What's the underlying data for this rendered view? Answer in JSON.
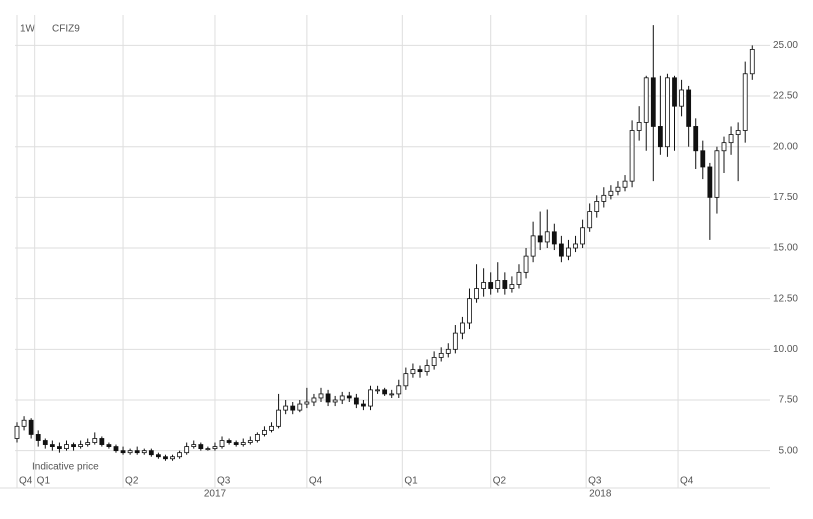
{
  "header": {
    "interval": "1W",
    "symbol": "CFIZ9"
  },
  "chart_data": {
    "type": "candlestick",
    "note": "Indicative price",
    "up_color": "#ffffff",
    "down_color": "#111111",
    "outline_color": "#111111",
    "grid": true,
    "ylim": [
      3.65,
      26.5
    ],
    "yticks": [
      {
        "value": 5,
        "label": "5.00"
      },
      {
        "value": 7.5,
        "label": "7.50"
      },
      {
        "value": 10,
        "label": "10.00"
      },
      {
        "value": 12.5,
        "label": "12.50"
      },
      {
        "value": 15,
        "label": "15.00"
      },
      {
        "value": 17.5,
        "label": "17.50"
      },
      {
        "value": 20,
        "label": "20.00"
      },
      {
        "value": 22.5,
        "label": "22.50"
      },
      {
        "value": 25,
        "label": "25.00"
      }
    ],
    "xticks": [
      {
        "value": 0,
        "label": "Q4"
      },
      {
        "value": 2.5,
        "label": "Q1"
      },
      {
        "value": 15,
        "label": "Q2"
      },
      {
        "value": 28,
        "label": "Q3"
      },
      {
        "value": 41,
        "label": "Q4"
      },
      {
        "value": 54.5,
        "label": "Q1"
      },
      {
        "value": 67,
        "label": "Q2"
      },
      {
        "value": 80.5,
        "label": "Q3"
      },
      {
        "value": 93.5,
        "label": "Q4"
      }
    ],
    "xyears": [
      {
        "value": 28,
        "label": "2017"
      },
      {
        "value": 82.5,
        "label": "2018"
      }
    ],
    "open": [
      5.6,
      6.2,
      6.5,
      5.8,
      5.5,
      5.3,
      5.2,
      5.1,
      5.3,
      5.2,
      5.3,
      5.4,
      5.6,
      5.3,
      5.2,
      5.0,
      4.9,
      5.0,
      4.9,
      5.0,
      4.8,
      4.7,
      4.6,
      4.7,
      4.9,
      5.2,
      5.3,
      5.1,
      5.1,
      5.2,
      5.5,
      5.4,
      5.3,
      5.4,
      5.5,
      5.8,
      6.0,
      6.2,
      7.0,
      7.2,
      7.0,
      7.3,
      7.4,
      7.6,
      7.8,
      7.4,
      7.5,
      7.7,
      7.6,
      7.3,
      7.2,
      8.0,
      8.0,
      7.8,
      7.8,
      8.2,
      8.8,
      9.0,
      8.9,
      9.2,
      9.6,
      9.8,
      10.0,
      10.8,
      11.3,
      12.5,
      13.0,
      13.3,
      13.0,
      13.4,
      13.0,
      13.2,
      13.8,
      14.6,
      15.6,
      15.3,
      15.8,
      15.2,
      14.6,
      15.0,
      15.2,
      16.0,
      16.8,
      17.3,
      17.6,
      17.8,
      18.0,
      18.3,
      20.8,
      21.2,
      23.4,
      21.0,
      20.0,
      23.4,
      22.0,
      22.8,
      21.0,
      19.8,
      19.0,
      17.5,
      19.8,
      20.2,
      20.6,
      20.8,
      23.6
    ],
    "high": [
      6.4,
      6.7,
      6.6,
      6.0,
      5.6,
      5.5,
      5.4,
      5.5,
      5.4,
      5.5,
      5.6,
      5.9,
      5.7,
      5.4,
      5.3,
      5.2,
      5.1,
      5.2,
      5.1,
      5.1,
      4.9,
      4.8,
      4.8,
      5.0,
      5.4,
      5.5,
      5.4,
      5.2,
      5.4,
      5.7,
      5.6,
      5.5,
      5.6,
      5.7,
      5.9,
      6.2,
      6.4,
      7.8,
      7.5,
      7.4,
      7.5,
      8.1,
      7.8,
      8.1,
      8.0,
      7.7,
      7.9,
      7.9,
      7.8,
      7.5,
      8.2,
      8.2,
      8.1,
      8.0,
      8.5,
      9.1,
      9.3,
      9.2,
      9.5,
      9.9,
      10.1,
      10.3,
      11.2,
      11.6,
      13.0,
      14.2,
      14.0,
      13.8,
      14.3,
      13.8,
      13.6,
      14.2,
      15.0,
      16.3,
      16.8,
      16.9,
      16.2,
      15.6,
      15.4,
      15.6,
      16.4,
      17.2,
      17.6,
      18.0,
      18.1,
      18.3,
      18.6,
      21.3,
      22.0,
      23.5,
      26.0,
      23.5,
      23.6,
      23.5,
      23.3,
      23.0,
      21.4,
      20.3,
      19.2,
      20.0,
      20.5,
      21.0,
      21.2,
      24.2,
      25.0
    ],
    "low": [
      5.4,
      6.0,
      5.6,
      5.2,
      5.1,
      5.0,
      4.9,
      5.0,
      5.0,
      5.1,
      5.2,
      5.3,
      5.2,
      5.1,
      4.9,
      4.8,
      4.8,
      4.8,
      4.8,
      4.7,
      4.6,
      4.5,
      4.5,
      4.6,
      4.8,
      5.1,
      5.0,
      5.0,
      5.0,
      5.1,
      5.3,
      5.2,
      5.2,
      5.3,
      5.4,
      5.7,
      5.9,
      6.1,
      6.8,
      6.8,
      6.9,
      7.1,
      7.2,
      7.4,
      7.2,
      7.2,
      7.3,
      7.4,
      7.1,
      7.0,
      7.0,
      7.8,
      7.7,
      7.6,
      7.6,
      8.0,
      8.6,
      8.6,
      8.7,
      9.0,
      9.4,
      9.6,
      9.8,
      10.5,
      11.0,
      12.3,
      12.6,
      12.7,
      12.8,
      12.7,
      12.8,
      13.0,
      13.5,
      14.3,
      14.9,
      15.0,
      14.9,
      14.3,
      14.4,
      14.8,
      15.0,
      15.8,
      16.5,
      17.0,
      17.4,
      17.6,
      17.8,
      18.0,
      20.3,
      19.8,
      18.3,
      19.6,
      19.5,
      19.8,
      21.5,
      20.0,
      18.9,
      18.4,
      15.4,
      16.7,
      18.7,
      19.6,
      18.3,
      20.2,
      23.3
    ],
    "close": [
      6.2,
      6.5,
      5.8,
      5.5,
      5.3,
      5.2,
      5.1,
      5.3,
      5.2,
      5.3,
      5.4,
      5.6,
      5.3,
      5.2,
      5.0,
      4.9,
      5.0,
      4.9,
      5.0,
      4.8,
      4.7,
      4.6,
      4.7,
      4.9,
      5.2,
      5.3,
      5.1,
      5.1,
      5.2,
      5.5,
      5.4,
      5.3,
      5.4,
      5.5,
      5.8,
      6.0,
      6.2,
      7.0,
      7.2,
      7.0,
      7.3,
      7.4,
      7.6,
      7.8,
      7.4,
      7.5,
      7.7,
      7.6,
      7.3,
      7.2,
      8.0,
      8.0,
      7.8,
      7.8,
      8.2,
      8.8,
      9.0,
      8.9,
      9.2,
      9.6,
      9.8,
      10.0,
      10.8,
      11.3,
      12.5,
      13.0,
      13.3,
      13.0,
      13.4,
      13.0,
      13.2,
      13.8,
      14.6,
      15.6,
      15.3,
      15.8,
      15.2,
      14.6,
      15.0,
      15.2,
      16.0,
      16.8,
      17.3,
      17.6,
      17.8,
      18.0,
      18.3,
      20.8,
      21.2,
      23.4,
      21.0,
      20.0,
      23.4,
      22.0,
      22.8,
      21.0,
      19.8,
      19.0,
      17.5,
      19.8,
      20.2,
      20.6,
      20.8,
      23.6,
      24.8
    ]
  }
}
